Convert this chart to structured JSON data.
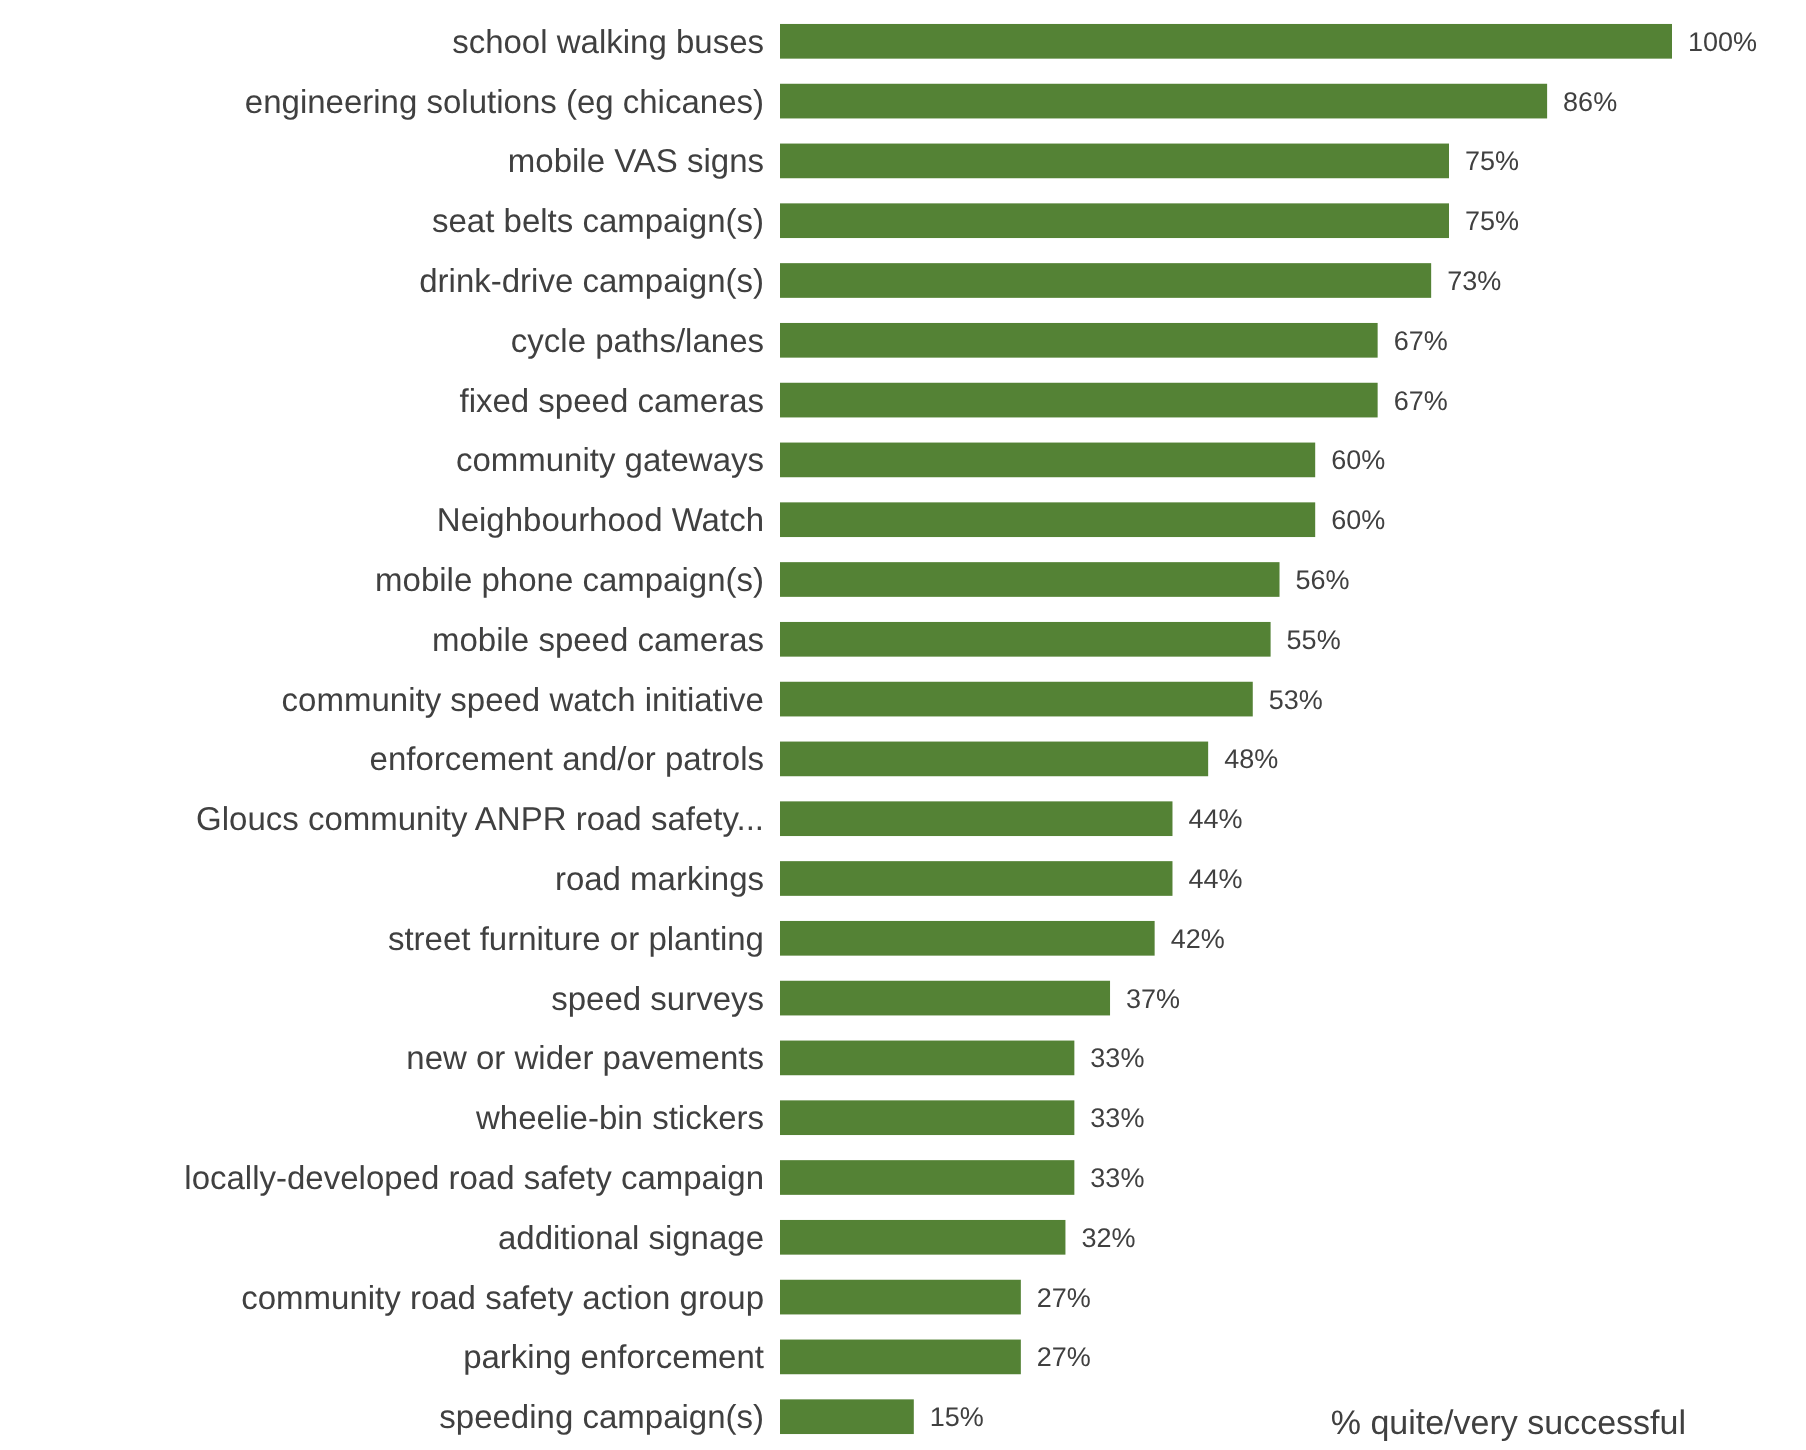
{
  "chart_data": {
    "type": "bar",
    "orientation": "horizontal",
    "color": "#548235",
    "categories": [
      "school walking buses",
      "engineering solutions (eg chicanes)",
      "mobile VAS signs",
      "seat belts campaign(s)",
      "drink-drive campaign(s)",
      "cycle paths/lanes",
      "fixed speed cameras",
      "community gateways",
      "Neighbourhood Watch",
      "mobile phone campaign(s)",
      "mobile speed cameras",
      "community speed watch initiative",
      "enforcement and/or patrols",
      "Gloucs community ANPR road safety...",
      "road markings",
      "street furniture or planting",
      "speed surveys",
      "new or wider pavements",
      "wheelie-bin stickers",
      "locally-developed road safety campaign",
      "additional signage",
      "community road safety action group",
      "parking enforcement",
      "speeding campaign(s)"
    ],
    "values": [
      100,
      86,
      75,
      75,
      73,
      67,
      67,
      60,
      60,
      56,
      55,
      53,
      48,
      44,
      44,
      42,
      37,
      33,
      33,
      33,
      32,
      27,
      27,
      15
    ],
    "value_labels": [
      "100%",
      "86%",
      "75%",
      "75%",
      "73%",
      "67%",
      "67%",
      "60%",
      "60%",
      "56%",
      "55%",
      "53%",
      "48%",
      "44%",
      "44%",
      "42%",
      "37%",
      "33%",
      "33%",
      "33%",
      "32%",
      "27%",
      "27%",
      "15%"
    ],
    "annotations": [
      "% quite/very successful"
    ]
  }
}
